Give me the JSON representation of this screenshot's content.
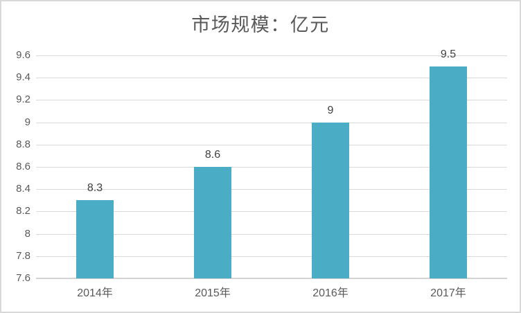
{
  "chart_data": {
    "type": "bar",
    "title": "市场规模：亿元",
    "categories": [
      "2014年",
      "2015年",
      "2016年",
      "2017年"
    ],
    "values": [
      8.3,
      8.6,
      9,
      9.5
    ],
    "data_labels": [
      "8.3",
      "8.6",
      "9",
      "9.5"
    ],
    "xlabel": "",
    "ylabel": "",
    "ylim": [
      7.6,
      9.6
    ],
    "ytick_step": 0.2,
    "ytick_labels": [
      "7.6",
      "7.8",
      "8",
      "8.2",
      "8.4",
      "8.6",
      "8.8",
      "9",
      "9.2",
      "9.4",
      "9.6"
    ],
    "grid": true,
    "legend_position": "none"
  },
  "colors": {
    "bar": "#4bacc6",
    "gridline": "#d9d9d9",
    "axis_line": "#d3d3d3",
    "title_text": "#595959",
    "axis_text": "#595959",
    "data_label_text": "#404040",
    "border": "#d8d8d8",
    "background": "#ffffff"
  }
}
